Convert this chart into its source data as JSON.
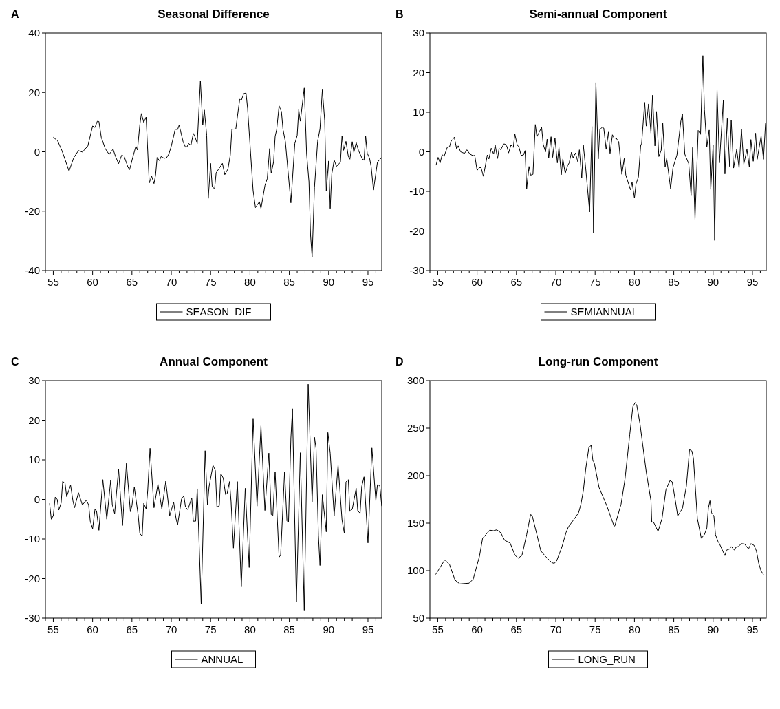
{
  "chart_data": [
    {
      "type": "line",
      "title": "Seasonal Difference",
      "annotations": [
        "A"
      ],
      "legend": "bottom",
      "xlim": [
        54,
        96.75
      ],
      "ylim": [
        -40,
        40
      ],
      "yticks": [
        -40,
        -20,
        0,
        20,
        40
      ],
      "xticks": [
        {
          "value": 54,
          "label": null
        },
        55,
        {
          "value": 56,
          "label": null
        },
        {
          "value": 57,
          "label": null
        },
        {
          "value": 58,
          "label": null
        },
        {
          "value": 59,
          "label": null
        },
        60,
        {
          "value": 61,
          "label": null
        },
        {
          "value": 62,
          "label": null
        },
        {
          "value": 63,
          "label": null
        },
        {
          "value": 64,
          "label": null
        },
        65,
        {
          "value": 66,
          "label": null
        },
        {
          "value": 67,
          "label": null
        },
        {
          "value": 68,
          "label": null
        },
        {
          "value": 69,
          "label": null
        },
        70,
        {
          "value": 71,
          "label": null
        },
        {
          "value": 72,
          "label": null
        },
        {
          "value": 73,
          "label": null
        },
        {
          "value": 74,
          "label": null
        },
        75,
        {
          "value": 76,
          "label": null
        },
        {
          "value": 77,
          "label": null
        },
        {
          "value": 78,
          "label": null
        },
        {
          "value": 79,
          "label": null
        },
        80,
        {
          "value": 81,
          "label": null
        },
        {
          "value": 82,
          "label": null
        },
        {
          "value": 83,
          "label": null
        },
        {
          "value": 84,
          "label": null
        },
        85,
        {
          "value": 86,
          "label": null
        },
        {
          "value": 87,
          "label": null
        },
        {
          "value": 88,
          "label": null
        },
        {
          "value": 89,
          "label": null
        },
        90,
        {
          "value": 91,
          "label": null
        },
        {
          "value": 92,
          "label": null
        },
        {
          "value": 93,
          "label": null
        },
        {
          "value": 94,
          "label": null
        },
        95,
        {
          "value": 96,
          "label": null
        }
      ],
      "x": [
        55.0,
        55.55,
        56.1,
        56.5,
        57.0,
        57.6,
        58.2,
        58.7,
        59.4,
        60.0,
        60.3,
        60.6,
        60.8,
        61.1,
        61.6,
        62.1,
        62.6,
        62.9,
        63.3,
        63.7,
        64.0,
        64.5,
        64.7,
        65.1,
        65.5,
        65.7,
        66.0,
        66.2,
        66.5,
        66.8,
        67.2,
        67.5,
        67.8,
        68.0,
        68.2,
        68.5,
        68.7,
        69.1,
        69.4,
        69.7,
        70.0,
        70.5,
        70.8,
        71.0,
        71.5,
        71.8,
        72.0,
        72.2,
        72.5,
        72.8,
        73.0,
        73.3,
        73.7,
        74.0,
        74.2,
        74.5,
        74.7,
        75.0,
        75.2,
        75.5,
        75.7,
        76.5,
        76.8,
        77.2,
        77.5,
        77.7,
        78.2,
        78.5,
        78.7,
        78.9,
        79.2,
        79.5,
        79.7,
        80.4,
        80.7,
        81.2,
        81.4,
        81.9,
        82.2,
        82.5,
        82.7,
        83.0,
        83.2,
        83.4,
        83.7,
        84.0,
        84.2,
        84.5,
        85.2,
        85.7,
        86.0,
        86.2,
        86.4,
        86.9,
        87.2,
        87.5,
        87.7,
        87.9,
        88.2,
        88.6,
        88.9,
        89.2,
        89.5,
        89.7,
        90.0,
        90.2,
        90.4,
        90.7,
        91.0,
        91.5,
        91.7,
        91.9,
        92.2,
        92.5,
        92.7,
        93.0,
        93.2,
        93.5,
        93.8,
        94.3,
        94.5,
        94.7,
        94.9,
        95.2,
        95.4,
        95.7,
        96.2,
        96.75
      ],
      "series": [
        {
          "name": "SEASON_DIF",
          "color": "#000000",
          "values": [
            4.9,
            3.7,
            0.4,
            -2.6,
            -6.5,
            -2.0,
            0.4,
            -0.1,
            2.0,
            8.7,
            8.2,
            10.3,
            10.2,
            4.9,
            1.1,
            -0.9,
            0.9,
            -1.5,
            -4.0,
            -1.1,
            -1.5,
            -5.2,
            -6.0,
            -1.9,
            1.9,
            0.6,
            9.0,
            12.9,
            9.9,
            11.7,
            -10.5,
            -8.2,
            -10.7,
            -7.9,
            -1.9,
            -3.0,
            -1.6,
            -2.2,
            -2.0,
            -0.7,
            1.9,
            7.6,
            7.5,
            9.0,
            3.4,
            1.6,
            1.7,
            2.8,
            2.2,
            6.2,
            5.1,
            2.8,
            23.9,
            9.0,
            14.1,
            5.6,
            -15.7,
            -3.9,
            -11.7,
            -12.5,
            -7.1,
            -3.9,
            -7.7,
            -5.8,
            -1.1,
            7.6,
            7.7,
            13.8,
            17.7,
            17.3,
            19.6,
            19.8,
            14.6,
            -13.1,
            -18.8,
            -16.8,
            -19.1,
            -11.4,
            -9.0,
            1.1,
            -7.3,
            -3.4,
            5.2,
            7.5,
            15.5,
            13.5,
            7.5,
            3.4,
            -17.2,
            2.8,
            5.5,
            14.2,
            10.3,
            21.5,
            -0.7,
            -10.1,
            -28.0,
            -35.5,
            -12.0,
            3.5,
            7.7,
            20.9,
            10.5,
            -13.1,
            -3.1,
            -19.1,
            -7.5,
            -2.8,
            -4.9,
            -3.5,
            5.4,
            0.5,
            3.5,
            -1.5,
            -2.5,
            3.4,
            -0.2,
            3.1,
            0.4,
            -2.5,
            -2.8,
            5.4,
            -0.4,
            -2.2,
            -4.9,
            -12.9,
            -3.5,
            -1.9
          ]
        }
      ]
    },
    {
      "type": "line",
      "title": "Semi-annual Component",
      "annotations": [
        "B"
      ],
      "legend": "bottom",
      "xlim": [
        54,
        96.75
      ],
      "ylim": [
        -30,
        30
      ],
      "yticks": [
        -30,
        -20,
        -10,
        0,
        10,
        20,
        30
      ],
      "xticks": [
        {
          "value": 54,
          "label": null
        },
        55,
        {
          "value": 56,
          "label": null
        },
        {
          "value": 57,
          "label": null
        },
        {
          "value": 58,
          "label": null
        },
        {
          "value": 59,
          "label": null
        },
        60,
        {
          "value": 61,
          "label": null
        },
        {
          "value": 62,
          "label": null
        },
        {
          "value": 63,
          "label": null
        },
        {
          "value": 64,
          "label": null
        },
        65,
        {
          "value": 66,
          "label": null
        },
        {
          "value": 67,
          "label": null
        },
        {
          "value": 68,
          "label": null
        },
        {
          "value": 69,
          "label": null
        },
        70,
        {
          "value": 71,
          "label": null
        },
        {
          "value": 72,
          "label": null
        },
        {
          "value": 73,
          "label": null
        },
        {
          "value": 74,
          "label": null
        },
        75,
        {
          "value": 76,
          "label": null
        },
        {
          "value": 77,
          "label": null
        },
        {
          "value": 78,
          "label": null
        },
        {
          "value": 79,
          "label": null
        },
        80,
        {
          "value": 81,
          "label": null
        },
        {
          "value": 82,
          "label": null
        },
        {
          "value": 83,
          "label": null
        },
        {
          "value": 84,
          "label": null
        },
        85,
        {
          "value": 86,
          "label": null
        },
        {
          "value": 87,
          "label": null
        },
        {
          "value": 88,
          "label": null
        },
        {
          "value": 89,
          "label": null
        },
        90,
        {
          "value": 91,
          "label": null
        },
        {
          "value": 92,
          "label": null
        },
        {
          "value": 93,
          "label": null
        },
        {
          "value": 94,
          "label": null
        },
        95,
        {
          "value": 96,
          "label": null
        }
      ],
      "x": [
        54.78,
        55.04,
        55.3,
        55.56,
        55.8,
        56.2,
        56.5,
        56.7,
        56.9,
        57.1,
        57.4,
        57.6,
        57.9,
        58.4,
        58.7,
        59.1,
        59.5,
        59.7,
        60.0,
        60.3,
        60.5,
        60.8,
        61.3,
        61.5,
        61.8,
        62.1,
        62.3,
        62.6,
        62.8,
        63.0,
        63.4,
        63.6,
        63.8,
        64.0,
        64.3,
        64.6,
        64.8,
        65.1,
        65.3,
        65.6,
        65.9,
        66.1,
        66.3,
        66.6,
        66.8,
        67.1,
        67.4,
        67.6,
        68.2,
        68.4,
        68.7,
        68.9,
        69.1,
        69.4,
        69.6,
        69.9,
        70.2,
        70.4,
        70.7,
        70.9,
        71.2,
        71.5,
        71.7,
        72.0,
        72.2,
        72.5,
        72.8,
        73.0,
        73.3,
        73.5,
        73.8,
        74.3,
        74.6,
        74.8,
        75.1,
        75.4,
        75.6,
        75.9,
        76.1,
        76.4,
        76.7,
        76.9,
        77.2,
        77.4,
        77.7,
        78.0,
        78.4,
        78.7,
        78.9,
        79.5,
        79.7,
        80.0,
        80.2,
        80.5,
        80.8,
        80.9,
        81.3,
        81.5,
        81.8,
        82.1,
        82.3,
        82.6,
        82.8,
        83.1,
        83.4,
        83.6,
        83.9,
        84.1,
        84.6,
        84.9,
        85.4,
        85.9,
        86.1,
        86.4,
        86.9,
        87.2,
        87.4,
        87.7,
        88.1,
        88.4,
        88.7,
        88.9,
        89.2,
        89.5,
        89.7,
        90.0,
        90.2,
        90.5,
        90.8,
        91.3,
        91.5,
        91.8,
        92.1,
        92.3,
        92.6,
        93.0,
        93.3,
        93.6,
        93.9,
        94.3,
        94.6,
        94.8,
        95.1,
        95.4,
        95.6,
        96.1,
        96.4,
        96.66
      ],
      "series": [
        {
          "name": "SEMIANNUAL",
          "color": "#000000",
          "values": [
            -3.4,
            -1.4,
            -2.8,
            -0.7,
            -1.2,
            1.1,
            1.3,
            2.7,
            3.1,
            3.7,
            0.7,
            1.5,
            0,
            -0.4,
            0.5,
            -0.6,
            -1.0,
            -0.9,
            -4.7,
            -4.0,
            -4.0,
            -6.2,
            -0.8,
            -1.8,
            0.9,
            -0.6,
            1.7,
            -1.7,
            0.9,
            0.5,
            2.0,
            1.9,
            1.3,
            -0.3,
            1.7,
            1.1,
            4.5,
            1.7,
            1.3,
            -0.9,
            -0.8,
            0.3,
            -9.3,
            -3.7,
            -5.9,
            -5.7,
            6.9,
            3.8,
            6.2,
            1.9,
            0,
            3.2,
            -1.5,
            3.8,
            -1.4,
            3.4,
            -2.8,
            1.1,
            -5.8,
            -1.8,
            -5.5,
            -3.5,
            -2.8,
            -0.1,
            -1.5,
            -0.3,
            -2.5,
            0.5,
            -6.6,
            1.7,
            -4.1,
            -15.2,
            6.4,
            -20.5,
            17.5,
            -1.8,
            5.6,
            6.2,
            6.0,
            0.6,
            5.0,
            -0.4,
            4.3,
            3.5,
            3.4,
            2.5,
            -5.7,
            -1.7,
            -5.9,
            -9.6,
            -7.7,
            -11.7,
            -8.1,
            -6.4,
            1.8,
            1.7,
            12.5,
            6.5,
            12.1,
            4.7,
            14.3,
            1.5,
            10.2,
            -1.2,
            0.4,
            7.2,
            -3.8,
            -1.7,
            -9.3,
            -4.0,
            -0.8,
            7.8,
            9.5,
            -0.6,
            -3.0,
            -11.1,
            1.1,
            -17.1,
            5.4,
            4.4,
            24.3,
            10.6,
            1.2,
            5.5,
            -9.5,
            1.7,
            -22.4,
            15.7,
            -2.8,
            13.0,
            -5.6,
            8.4,
            -3.7,
            8.0,
            -4.1,
            0.6,
            -4.1,
            5.7,
            -3.1,
            0.6,
            -3.8,
            3.1,
            -2.4,
            4.7,
            -1.9,
            4.0,
            -1.9,
            7.2
          ]
        }
      ]
    },
    {
      "type": "line",
      "title": "Annual Component",
      "annotations": [
        "C"
      ],
      "legend": "bottom",
      "xlim": [
        54,
        96.75
      ],
      "ylim": [
        -30,
        30
      ],
      "yticks": [
        -30,
        -20,
        -10,
        0,
        10,
        20,
        30
      ],
      "xticks": [
        {
          "value": 54,
          "label": null
        },
        55,
        {
          "value": 56,
          "label": null
        },
        {
          "value": 57,
          "label": null
        },
        {
          "value": 58,
          "label": null
        },
        {
          "value": 59,
          "label": null
        },
        60,
        {
          "value": 61,
          "label": null
        },
        {
          "value": 62,
          "label": null
        },
        {
          "value": 63,
          "label": null
        },
        {
          "value": 64,
          "label": null
        },
        65,
        {
          "value": 66,
          "label": null
        },
        {
          "value": 67,
          "label": null
        },
        {
          "value": 68,
          "label": null
        },
        {
          "value": 69,
          "label": null
        },
        70,
        {
          "value": 71,
          "label": null
        },
        {
          "value": 72,
          "label": null
        },
        {
          "value": 73,
          "label": null
        },
        {
          "value": 74,
          "label": null
        },
        75,
        {
          "value": 76,
          "label": null
        },
        {
          "value": 77,
          "label": null
        },
        {
          "value": 78,
          "label": null
        },
        {
          "value": 79,
          "label": null
        },
        80,
        {
          "value": 81,
          "label": null
        },
        {
          "value": 82,
          "label": null
        },
        {
          "value": 83,
          "label": null
        },
        {
          "value": 84,
          "label": null
        },
        85,
        {
          "value": 86,
          "label": null
        },
        {
          "value": 87,
          "label": null
        },
        {
          "value": 88,
          "label": null
        },
        {
          "value": 89,
          "label": null
        },
        90,
        {
          "value": 91,
          "label": null
        },
        {
          "value": 92,
          "label": null
        },
        {
          "value": 93,
          "label": null
        },
        {
          "value": 94,
          "label": null
        },
        95,
        {
          "value": 96,
          "label": null
        }
      ],
      "x": [
        54.53,
        54.75,
        55.0,
        55.25,
        55.5,
        55.7,
        56.0,
        56.2,
        56.5,
        56.7,
        57.2,
        57.5,
        57.7,
        58.2,
        58.7,
        59.2,
        59.5,
        59.7,
        60.0,
        60.3,
        60.5,
        60.8,
        61.3,
        61.8,
        62.3,
        62.5,
        62.8,
        63.3,
        63.8,
        64.3,
        64.8,
        65.0,
        65.3,
        65.8,
        66.0,
        66.3,
        66.5,
        66.8,
        67.0,
        67.3,
        67.8,
        68.3,
        68.8,
        69.3,
        69.8,
        70.3,
        70.6,
        70.8,
        71.3,
        71.6,
        71.8,
        72.1,
        72.6,
        72.8,
        73.1,
        73.3,
        73.8,
        74.3,
        74.6,
        74.8,
        75.3,
        75.6,
        75.8,
        76.1,
        76.3,
        76.6,
        76.9,
        77.1,
        77.4,
        77.6,
        77.9,
        78.4,
        78.9,
        79.4,
        79.9,
        80.4,
        80.9,
        81.4,
        81.9,
        82.4,
        82.7,
        82.9,
        83.2,
        83.7,
        83.9,
        84.4,
        84.7,
        84.9,
        85.2,
        85.4,
        85.9,
        86.4,
        86.9,
        87.4,
        87.9,
        88.2,
        88.4,
        88.7,
        88.9,
        89.2,
        89.7,
        89.9,
        90.2,
        90.7,
        91.2,
        91.7,
        92.0,
        92.2,
        92.5,
        92.7,
        93.0,
        93.5,
        93.7,
        94.0,
        94.2,
        94.5,
        95.0,
        95.5,
        96.0,
        96.2,
        96.5,
        96.75
      ],
      "series": [
        {
          "name": "ANNUAL",
          "color": "#000000",
          "values": [
            -1.0,
            -5,
            -4.1,
            0.6,
            0,
            -2.7,
            -0.9,
            4.6,
            4,
            0.7,
            3.6,
            -0.4,
            -2.1,
            1.7,
            -1.4,
            -0.2,
            -1.4,
            -5.5,
            -7.4,
            -2.5,
            -2.9,
            -7.8,
            5,
            -5,
            4.8,
            -1.3,
            -3.6,
            7.6,
            -6.6,
            9.1,
            -3.1,
            -1.6,
            3.1,
            -4.1,
            -8.6,
            -9.3,
            -1.0,
            -2.4,
            2.1,
            12.9,
            -2.1,
            3.9,
            -2.4,
            4.6,
            -4.1,
            -0.7,
            -4.8,
            -6.5,
            0.1,
            0.9,
            -1.9,
            -2.6,
            0.4,
            -5.5,
            -5.5,
            2.7,
            -26.4,
            12.3,
            -1.4,
            3.2,
            8.6,
            7.3,
            -1.9,
            -1.6,
            6.5,
            5.4,
            1.2,
            1.5,
            4.5,
            -0.6,
            -12.3,
            4.5,
            -22.1,
            2.8,
            -17.2,
            20.5,
            -1.7,
            18.6,
            -2.8,
            11.7,
            -3.8,
            -4.2,
            7.0,
            -14.6,
            -14.1,
            7.0,
            -5.4,
            -5.8,
            15.5,
            22.9,
            -25.9,
            11.8,
            -28.0,
            29.1,
            -0.6,
            15.7,
            12.9,
            -9.1,
            -16.7,
            1.2,
            -8.2,
            16.9,
            11.7,
            -4.1,
            8.7,
            -5.2,
            -8.6,
            4.4,
            5.0,
            -3.0,
            -2.5,
            2.8,
            -2.9,
            -3.5,
            3.2,
            5.7,
            -11.0,
            13.0,
            -0.3,
            3.7,
            3.5,
            -1.7
          ]
        }
      ]
    },
    {
      "type": "line",
      "title": "Long-run Component",
      "annotations": [
        "D"
      ],
      "legend": "bottom",
      "xlim": [
        54,
        96.75
      ],
      "ylim": [
        50,
        300
      ],
      "yticks": [
        50,
        100,
        150,
        200,
        250,
        300
      ],
      "xticks": [
        {
          "value": 54,
          "label": null
        },
        55,
        {
          "value": 56,
          "label": null
        },
        {
          "value": 57,
          "label": null
        },
        {
          "value": 58,
          "label": null
        },
        {
          "value": 59,
          "label": null
        },
        60,
        {
          "value": 61,
          "label": null
        },
        {
          "value": 62,
          "label": null
        },
        {
          "value": 63,
          "label": null
        },
        {
          "value": 64,
          "label": null
        },
        65,
        {
          "value": 66,
          "label": null
        },
        {
          "value": 67,
          "label": null
        },
        {
          "value": 68,
          "label": null
        },
        {
          "value": 69,
          "label": null
        },
        70,
        {
          "value": 71,
          "label": null
        },
        {
          "value": 72,
          "label": null
        },
        {
          "value": 73,
          "label": null
        },
        {
          "value": 74,
          "label": null
        },
        75,
        {
          "value": 76,
          "label": null
        },
        {
          "value": 77,
          "label": null
        },
        {
          "value": 78,
          "label": null
        },
        {
          "value": 79,
          "label": null
        },
        80,
        {
          "value": 81,
          "label": null
        },
        {
          "value": 82,
          "label": null
        },
        {
          "value": 83,
          "label": null
        },
        {
          "value": 84,
          "label": null
        },
        85,
        {
          "value": 86,
          "label": null
        },
        {
          "value": 87,
          "label": null
        },
        {
          "value": 88,
          "label": null
        },
        {
          "value": 89,
          "label": null
        },
        90,
        {
          "value": 91,
          "label": null
        },
        {
          "value": 92,
          "label": null
        },
        {
          "value": 93,
          "label": null
        },
        {
          "value": 94,
          "label": null
        },
        95,
        {
          "value": 96,
          "label": null
        }
      ],
      "x": [
        54.74,
        55.9,
        56.5,
        57.2,
        57.8,
        59.0,
        59.5,
        60.3,
        60.7,
        61.6,
        62.1,
        62.5,
        63.0,
        63.5,
        64.2,
        64.8,
        65.2,
        65.7,
        66.3,
        66.8,
        67.0,
        67.6,
        68.1,
        68.7,
        69.5,
        69.8,
        70.1,
        70.8,
        71.3,
        71.6,
        72.4,
        72.9,
        73.2,
        73.5,
        73.8,
        74.2,
        74.5,
        74.7,
        74.9,
        75.5,
        76.5,
        77.4,
        77.5,
        78.3,
        78.8,
        79.4,
        79.8,
        80.1,
        80.3,
        80.7,
        81.5,
        82.1,
        82.2,
        82.4,
        83.0,
        83.5,
        84.0,
        84.5,
        84.8,
        85.2,
        85.5,
        86.1,
        86.6,
        87.0,
        87.3,
        87.5,
        88.0,
        88.5,
        88.9,
        89.2,
        89.4,
        89.6,
        89.8,
        90.1,
        90.3,
        90.6,
        90.8,
        91.5,
        91.7,
        92.1,
        92.3,
        92.7,
        92.9,
        93.2,
        93.6,
        94.0,
        94.5,
        94.8,
        95.2,
        95.5,
        95.8,
        96.1,
        96.4
      ],
      "series": [
        {
          "name": "LONG_RUN",
          "color": "#000000",
          "values": [
            96,
            111.4,
            106.3,
            90,
            86,
            86.8,
            91,
            115,
            134,
            142.6,
            142,
            143,
            140,
            132,
            129,
            116.5,
            113,
            116,
            138,
            159,
            158,
            138,
            120.8,
            115,
            108.4,
            107.6,
            110,
            125.4,
            140,
            146,
            155,
            161,
            170,
            184,
            206.6,
            229.4,
            232,
            216.8,
            213,
            187.6,
            168,
            147,
            147,
            170,
            196.4,
            243,
            272.6,
            277,
            274,
            254.8,
            204,
            173.6,
            151,
            151.5,
            141.4,
            154.6,
            185,
            194.7,
            193.5,
            173.6,
            157.6,
            165.6,
            189,
            227.4,
            226,
            218,
            154.6,
            134,
            138,
            145,
            166,
            173.6,
            161,
            157.6,
            138,
            131,
            128.4,
            115.8,
            121.6,
            122.8,
            125.4,
            121.6,
            124.6,
            125.4,
            128.4,
            128,
            122.8,
            128.4,
            126.6,
            120.8,
            107.6,
            99.5,
            96
          ]
        }
      ]
    }
  ]
}
